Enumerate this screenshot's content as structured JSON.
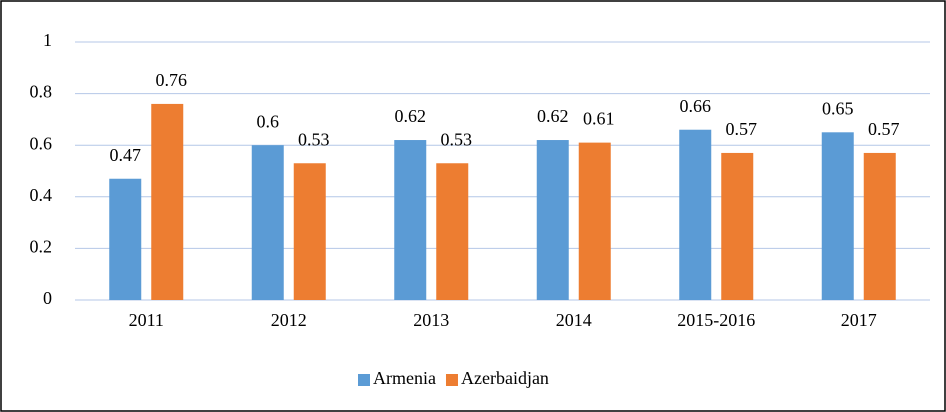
{
  "chart_data": {
    "type": "bar",
    "categories": [
      "2011",
      "2012",
      "2013",
      "2014",
      "2015-2016",
      "2017"
    ],
    "series": [
      {
        "name": "Armenia",
        "color": "#5b9bd5",
        "values": [
          0.47,
          0.6,
          0.62,
          0.62,
          0.66,
          0.65
        ]
      },
      {
        "name": "Azerbaidjan",
        "color": "#ed7d31",
        "values": [
          0.76,
          0.53,
          0.53,
          0.61,
          0.57,
          0.57
        ]
      }
    ],
    "ylim": [
      0,
      1
    ],
    "yticks": [
      0,
      0.2,
      0.4,
      0.6,
      0.8,
      1
    ],
    "grid": true,
    "legend": "bottom"
  }
}
